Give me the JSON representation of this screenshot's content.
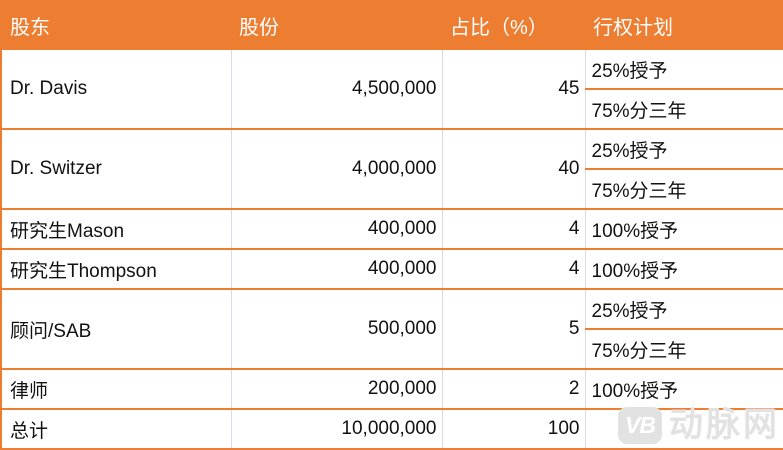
{
  "colors": {
    "header_bg": "#ED7D31",
    "row_border": "#ED7D31",
    "column_border": "#D6DCE5",
    "header_text": "#FFFFFF",
    "body_text": "#111111",
    "watermark_gray": "#E2E2E2"
  },
  "table": {
    "headers": [
      "股东",
      "股份",
      "占比（%）",
      "行权计划"
    ],
    "rows": [
      {
        "shareholder": "Dr. Davis",
        "shares": "4,500,000",
        "percent": "45",
        "vesting": [
          "25%授予",
          "75%分三年"
        ]
      },
      {
        "shareholder": "Dr. Switzer",
        "shares": "4,000,000",
        "percent": "40",
        "vesting": [
          "25%授予",
          "75%分三年"
        ]
      },
      {
        "shareholder": "研究生Mason",
        "shares": "400,000",
        "percent": "4",
        "vesting": [
          "100%授予"
        ]
      },
      {
        "shareholder": "研究生Thompson",
        "shares": "400,000",
        "percent": "4",
        "vesting": [
          "100%授予"
        ]
      },
      {
        "shareholder": "顾问/SAB",
        "shares": "500,000",
        "percent": "5",
        "vesting": [
          "25%授予",
          "75%分三年"
        ]
      },
      {
        "shareholder": "律师",
        "shares": "200,000",
        "percent": "2",
        "vesting": [
          "100%授予"
        ]
      },
      {
        "shareholder": "总计",
        "shares": "10,000,000",
        "percent": "100",
        "vesting": []
      }
    ]
  },
  "chart_data": {
    "type": "table",
    "title": "",
    "columns": [
      "股东",
      "股份",
      "占比（%）",
      "行权计划"
    ],
    "rows": [
      [
        "Dr. Davis",
        "4,500,000",
        "45",
        "25%授予 / 75%分三年"
      ],
      [
        "Dr. Switzer",
        "4,000,000",
        "40",
        "25%授予 / 75%分三年"
      ],
      [
        "研究生Mason",
        "400,000",
        "4",
        "100%授予"
      ],
      [
        "研究生Thompson",
        "400,000",
        "4",
        "100%授予"
      ],
      [
        "顾问/SAB",
        "500,000",
        "5",
        "25%授予 / 75%分三年"
      ],
      [
        "律师",
        "200,000",
        "2",
        "100%授予"
      ],
      [
        "总计",
        "10,000,000",
        "100",
        ""
      ]
    ]
  },
  "watermark": {
    "logo_text": "VB",
    "brand_text": "动脉网"
  }
}
